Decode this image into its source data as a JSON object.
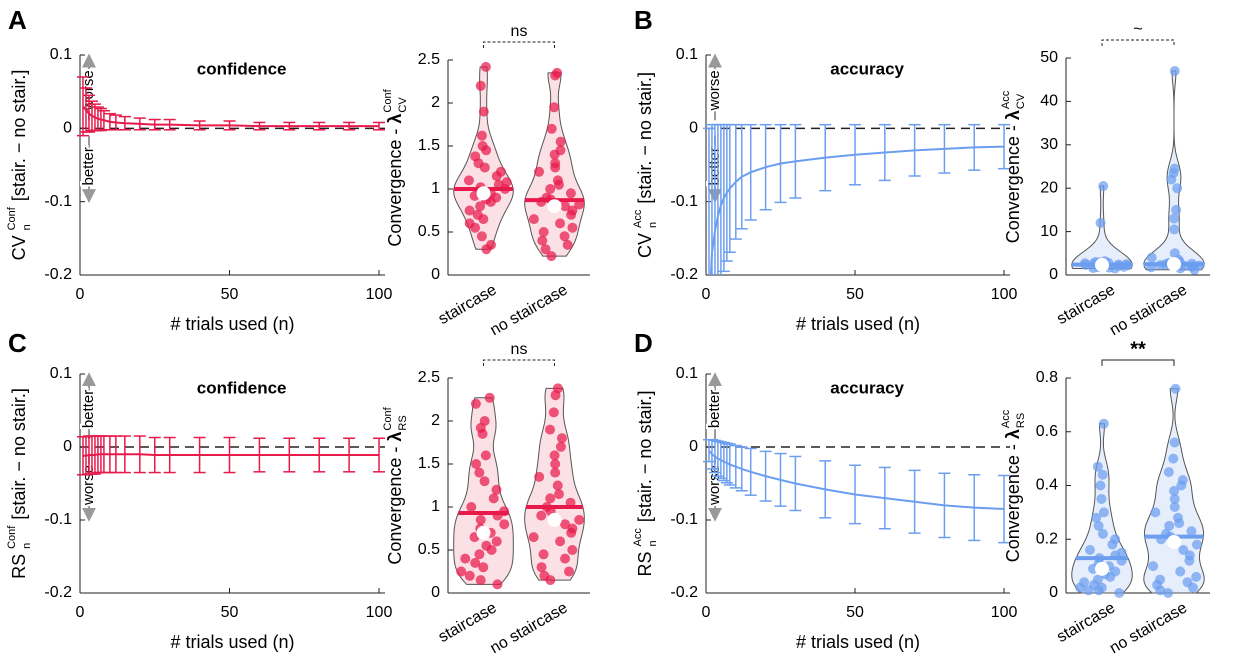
{
  "chart_data": [
    {
      "type": "errorbar",
      "panel": "A",
      "title": "confidence",
      "title_color": "#e8194b",
      "ylabel": [
        {
          "text": "CV"
        },
        {
          "sub": "n",
          "sup": "Conf"
        },
        {
          "text": "[stair. − no stair.]"
        }
      ],
      "xlabel": "# trials used (n)",
      "annotations": [
        "worse",
        "better"
      ],
      "x": [
        1,
        2,
        3,
        4,
        5,
        6,
        7,
        8,
        10,
        12,
        15,
        20,
        25,
        30,
        40,
        50,
        60,
        70,
        80,
        90,
        100
      ],
      "series": [
        {
          "color": "#e8194b",
          "values": [
            0.03,
            0.025,
            0.02,
            0.017,
            0.015,
            0.013,
            0.012,
            0.011,
            0.009,
            0.008,
            0.007,
            0.006,
            0.005,
            0.005,
            0.004,
            0.004,
            0.003,
            0.003,
            0.003,
            0.003,
            0.003
          ],
          "errors": [
            0.04,
            0.03,
            0.025,
            0.02,
            0.018,
            0.016,
            0.015,
            0.013,
            0.011,
            0.01,
            0.009,
            0.008,
            0.007,
            0.007,
            0.006,
            0.006,
            0.005,
            0.005,
            0.005,
            0.005,
            0.005
          ]
        }
      ],
      "hline": 0,
      "xlim": [
        0,
        102
      ],
      "ylim": [
        -0.2,
        0.1
      ],
      "xticks": [
        0,
        50,
        100
      ],
      "yticks": [
        -0.2,
        -0.1,
        0,
        0.1
      ]
    },
    {
      "type": "violin",
      "color": "#e8194b",
      "fill": "#fbe0e6",
      "ylabel": [
        {
          "text": "Convergence -"
        },
        {
          "bold": "λ"
        },
        {
          "sub": "CV",
          "sup": "Conf"
        }
      ],
      "categories": [
        "staircase",
        "no staircase"
      ],
      "significance": {
        "label": "ns",
        "dashed": true
      },
      "groups": [
        {
          "points": [
            2.42,
            2.2,
            1.9,
            1.62,
            1.5,
            1.45,
            1.38,
            1.3,
            1.25,
            1.2,
            1.15,
            1.1,
            1.08,
            1.05,
            1.02,
            1.0,
            0.98,
            0.95,
            0.92,
            0.9,
            0.88,
            0.85,
            0.8,
            0.75,
            0.7,
            0.65,
            0.6,
            0.55,
            0.45,
            0.35,
            0.3
          ],
          "mean": 1.0,
          "median": 0.95
        },
        {
          "points": [
            2.35,
            2.32,
            1.95,
            1.7,
            1.55,
            1.45,
            1.4,
            1.3,
            1.25,
            1.2,
            1.1,
            1.05,
            1.0,
            0.95,
            0.9,
            0.88,
            0.85,
            0.82,
            0.8,
            0.75,
            0.7,
            0.65,
            0.6,
            0.55,
            0.5,
            0.45,
            0.4,
            0.35,
            0.3,
            0.22
          ],
          "mean": 0.87,
          "median": 0.8
        }
      ],
      "ylim": [
        0,
        2.5
      ],
      "yticks": [
        0,
        0.5,
        1,
        1.5,
        2,
        2.5
      ]
    },
    {
      "type": "errorbar",
      "panel": "B",
      "title": "accuracy",
      "title_color": "#6c9ef0",
      "ylabel": [
        {
          "text": "CV"
        },
        {
          "sub": "n",
          "sup": "Acc"
        },
        {
          "text": "[stair. − no stair.]"
        }
      ],
      "xlabel": "# trials used (n)",
      "annotations": [
        "worse",
        "better"
      ],
      "x": [
        1,
        2,
        3,
        4,
        5,
        6,
        7,
        8,
        10,
        12,
        15,
        20,
        25,
        30,
        40,
        50,
        60,
        70,
        80,
        90,
        100
      ],
      "series": [
        {
          "color": "#6c9ef0",
          "values": [
            -0.25,
            -0.17,
            -0.14,
            -0.12,
            -0.105,
            -0.095,
            -0.088,
            -0.082,
            -0.073,
            -0.066,
            -0.06,
            -0.053,
            -0.048,
            -0.045,
            -0.04,
            -0.036,
            -0.033,
            -0.03,
            -0.028,
            -0.026,
            -0.025
          ],
          "errors": [
            0.25,
            0.175,
            0.145,
            0.125,
            0.11,
            0.1,
            0.093,
            0.087,
            0.078,
            0.071,
            0.065,
            0.058,
            0.053,
            0.05,
            0.045,
            0.041,
            0.038,
            0.035,
            0.033,
            0.031,
            0.03
          ]
        }
      ],
      "hline": 0,
      "xlim": [
        0,
        102
      ],
      "ylim": [
        -0.2,
        0.1
      ],
      "xticks": [
        0,
        50,
        100
      ],
      "yticks": [
        -0.2,
        -0.1,
        0,
        0.1
      ]
    },
    {
      "type": "violin",
      "color": "#6c9ef0",
      "fill": "#e6eefc",
      "ylabel": [
        {
          "text": "Convergence -"
        },
        {
          "bold": "λ"
        },
        {
          "sub": "CV",
          "sup": "Acc"
        }
      ],
      "categories": [
        "staircase",
        "no staircase"
      ],
      "significance": {
        "label": "~",
        "dashed": true
      },
      "groups": [
        {
          "points": [
            20.5,
            12,
            3.2,
            3,
            2.9,
            2.8,
            2.7,
            2.6,
            2.5,
            2.5,
            2.4,
            2.3,
            2.2,
            2.1,
            2,
            1.9,
            1.8,
            1.7,
            1.6,
            1.5
          ],
          "mean": 2.4,
          "median": 2.3
        },
        {
          "points": [
            47,
            24.5,
            23.5,
            22,
            20,
            15,
            13,
            10.5,
            5,
            4,
            3.5,
            3,
            2.8,
            2.6,
            2.5,
            2.4,
            2.3,
            2.2,
            2.1,
            2,
            1.9,
            1.8,
            1.5,
            1.2
          ],
          "mean": 2.5,
          "median": 2.5
        }
      ],
      "ylim": [
        0,
        50
      ],
      "yticks": [
        0,
        10,
        20,
        30,
        40,
        50
      ]
    },
    {
      "type": "errorbar",
      "panel": "C",
      "title": "confidence",
      "title_color": "#e8194b",
      "ylabel": [
        {
          "text": "RS"
        },
        {
          "sub": "n",
          "sup": "Conf"
        },
        {
          "text": "[stair. − no stair.]"
        }
      ],
      "xlabel": "# trials used (n)",
      "annotations": [
        "better",
        "worse"
      ],
      "x": [
        1,
        2,
        3,
        4,
        5,
        6,
        7,
        8,
        10,
        12,
        15,
        20,
        25,
        30,
        40,
        50,
        60,
        70,
        80,
        90,
        100
      ],
      "series": [
        {
          "color": "#e8194b",
          "values": [
            -0.012,
            -0.012,
            -0.011,
            -0.011,
            -0.011,
            -0.01,
            -0.01,
            -0.01,
            -0.01,
            -0.01,
            -0.01,
            -0.01,
            -0.011,
            -0.011,
            -0.011,
            -0.011,
            -0.011,
            -0.011,
            -0.011,
            -0.011,
            -0.011
          ],
          "errors": [
            0.026,
            0.026,
            0.026,
            0.026,
            0.026,
            0.025,
            0.025,
            0.025,
            0.025,
            0.025,
            0.025,
            0.025,
            0.024,
            0.024,
            0.024,
            0.024,
            0.023,
            0.023,
            0.023,
            0.023,
            0.023
          ]
        }
      ],
      "hline": 0,
      "xlim": [
        0,
        102
      ],
      "ylim": [
        -0.2,
        0.1
      ],
      "xticks": [
        0,
        50,
        100
      ],
      "yticks": [
        -0.2,
        -0.1,
        0,
        0.1
      ]
    },
    {
      "type": "violin",
      "color": "#e8194b",
      "fill": "#fbe0e6",
      "ylabel": [
        {
          "text": "Convergence -"
        },
        {
          "bold": "λ"
        },
        {
          "sub": "RS",
          "sup": "Conf"
        }
      ],
      "categories": [
        "staircase",
        "no staircase"
      ],
      "significance": {
        "label": "ns",
        "dashed": true
      },
      "groups": [
        {
          "points": [
            2.27,
            2.2,
            2.0,
            1.92,
            1.85,
            1.6,
            1.5,
            1.4,
            1.3,
            1.2,
            1.1,
            1.0,
            0.95,
            0.9,
            0.85,
            0.8,
            0.75,
            0.7,
            0.65,
            0.6,
            0.55,
            0.5,
            0.45,
            0.4,
            0.35,
            0.3,
            0.25,
            0.2,
            0.15,
            0.1
          ],
          "mean": 0.93,
          "median": 0.7
        },
        {
          "points": [
            2.38,
            2.3,
            2.1,
            1.9,
            1.8,
            1.7,
            1.6,
            1.5,
            1.4,
            1.35,
            1.25,
            1.15,
            1.1,
            1.05,
            1.0,
            0.95,
            0.9,
            0.85,
            0.8,
            0.75,
            0.7,
            0.65,
            0.6,
            0.5,
            0.45,
            0.4,
            0.3,
            0.25,
            0.2,
            0.15
          ],
          "mean": 1.0,
          "median": 0.85
        }
      ],
      "ylim": [
        0,
        2.5
      ],
      "yticks": [
        0,
        0.5,
        1,
        1.5,
        2,
        2.5
      ]
    },
    {
      "type": "errorbar",
      "panel": "D",
      "title": "accuracy",
      "title_color": "#6c9ef0",
      "ylabel": [
        {
          "text": "RS"
        },
        {
          "sub": "n",
          "sup": "Acc"
        },
        {
          "text": "[stair. − no stair.]"
        }
      ],
      "xlabel": "# trials used (n)",
      "annotations": [
        "better",
        "worse"
      ],
      "x": [
        1,
        2,
        3,
        4,
        5,
        6,
        7,
        8,
        10,
        12,
        15,
        20,
        25,
        30,
        40,
        50,
        60,
        70,
        80,
        90,
        100
      ],
      "series": [
        {
          "color": "#6c9ef0",
          "values": [
            -0.005,
            -0.01,
            -0.013,
            -0.016,
            -0.018,
            -0.02,
            -0.022,
            -0.024,
            -0.027,
            -0.03,
            -0.034,
            -0.04,
            -0.045,
            -0.05,
            -0.058,
            -0.065,
            -0.07,
            -0.075,
            -0.08,
            -0.083,
            -0.085
          ],
          "errors": [
            0.015,
            0.02,
            0.022,
            0.024,
            0.025,
            0.026,
            0.027,
            0.028,
            0.029,
            0.03,
            0.032,
            0.034,
            0.036,
            0.037,
            0.039,
            0.04,
            0.042,
            0.043,
            0.044,
            0.045,
            0.046
          ]
        }
      ],
      "hline": 0,
      "xlim": [
        0,
        102
      ],
      "ylim": [
        -0.2,
        0.1
      ],
      "xticks": [
        0,
        50,
        100
      ],
      "yticks": [
        -0.2,
        -0.1,
        0,
        0.1
      ]
    },
    {
      "type": "violin",
      "color": "#6c9ef0",
      "fill": "#e6eefc",
      "ylabel": [
        {
          "text": "Convergence -"
        },
        {
          "bold": "λ"
        },
        {
          "sub": "RS",
          "sup": "Acc"
        }
      ],
      "categories": [
        "staircase",
        "no staircase"
      ],
      "significance": {
        "label": "**",
        "dashed": false
      },
      "groups": [
        {
          "points": [
            0.63,
            0.47,
            0.44,
            0.4,
            0.35,
            0.3,
            0.28,
            0.25,
            0.22,
            0.2,
            0.18,
            0.16,
            0.15,
            0.14,
            0.13,
            0.12,
            0.11,
            0.1,
            0.09,
            0.08,
            0.07,
            0.06,
            0.05,
            0.04,
            0.03,
            0.02,
            0.02,
            0.01,
            0.01,
            0.0
          ],
          "mean": 0.13,
          "median": 0.09
        },
        {
          "points": [
            0.76,
            0.56,
            0.5,
            0.45,
            0.42,
            0.4,
            0.38,
            0.35,
            0.32,
            0.3,
            0.28,
            0.26,
            0.25,
            0.23,
            0.22,
            0.21,
            0.2,
            0.18,
            0.16,
            0.14,
            0.12,
            0.1,
            0.08,
            0.06,
            0.05,
            0.04,
            0.03,
            0.02,
            0.01,
            0.0
          ],
          "mean": 0.21,
          "median": 0.19
        }
      ],
      "ylim": [
        0,
        0.8
      ],
      "yticks": [
        0,
        0.2,
        0.4,
        0.6,
        0.8
      ]
    }
  ]
}
